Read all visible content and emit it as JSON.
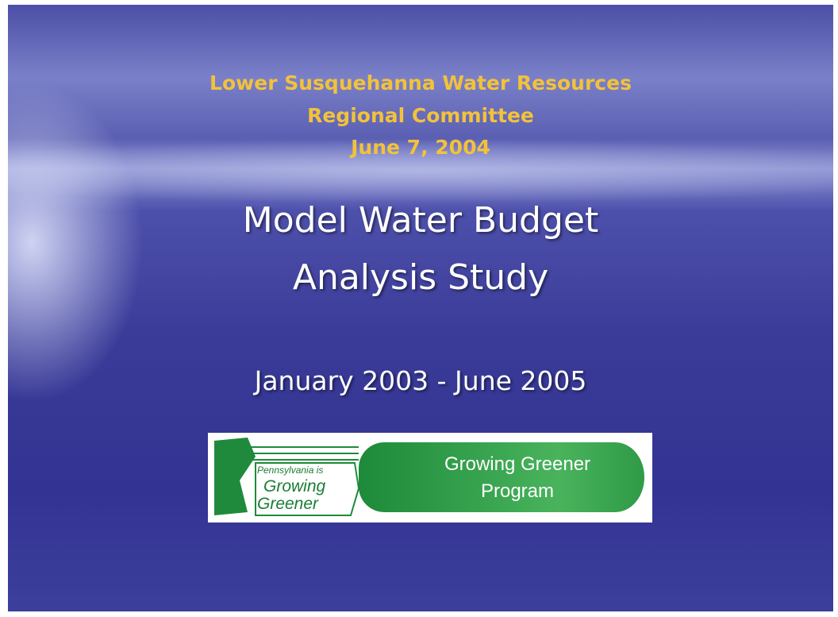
{
  "header": {
    "lines": [
      "Lower Susquehanna Water Resources",
      "Regional Committee",
      "June 7, 2004"
    ]
  },
  "title": {
    "lines": [
      "Model Water Budget",
      "Analysis Study"
    ]
  },
  "period": "January 2003 - June 2005",
  "logo": {
    "left": {
      "tagline": "Pennsylvania is",
      "lines": [
        "Growing",
        "Greener"
      ]
    },
    "right": {
      "lines": [
        "Growing Greener",
        "Program"
      ]
    }
  }
}
